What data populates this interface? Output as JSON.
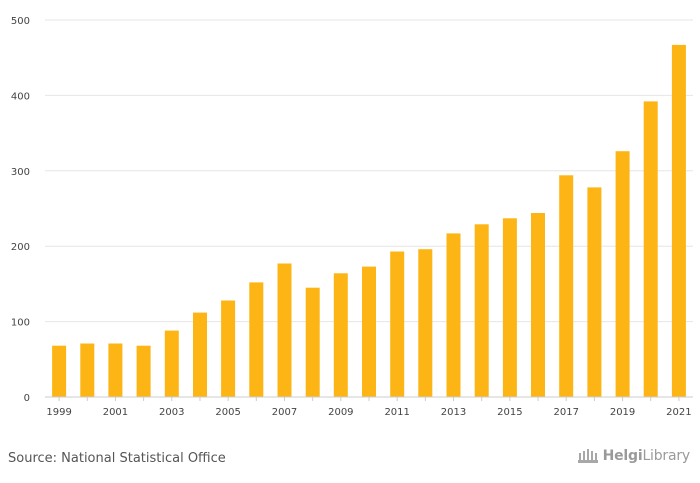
{
  "chart_data": {
    "type": "bar",
    "title": "",
    "xlabel": "",
    "ylabel": "",
    "ylim": [
      0,
      500
    ],
    "yticks": [
      0,
      100,
      200,
      300,
      400,
      500
    ],
    "categories": [
      "1999",
      "2000",
      "2001",
      "2002",
      "2003",
      "2004",
      "2005",
      "2006",
      "2007",
      "2008",
      "2009",
      "2010",
      "2011",
      "2012",
      "2013",
      "2014",
      "2015",
      "2016",
      "2017",
      "2018",
      "2019",
      "2020",
      "2021"
    ],
    "xtick_labels": [
      "1999",
      "2001",
      "2003",
      "2005",
      "2007",
      "2009",
      "2011",
      "2013",
      "2015",
      "2017",
      "2019",
      "2021"
    ],
    "values": [
      68,
      71,
      71,
      68,
      88,
      112,
      128,
      152,
      177,
      145,
      164,
      173,
      193,
      196,
      217,
      229,
      237,
      244,
      294,
      278,
      326,
      392,
      467
    ],
    "bar_color": "#FDB515",
    "grid": true
  },
  "footer": {
    "source": "Source: National Statistical Office",
    "logo_text_bold": "Helgi",
    "logo_text_light": "Library"
  }
}
